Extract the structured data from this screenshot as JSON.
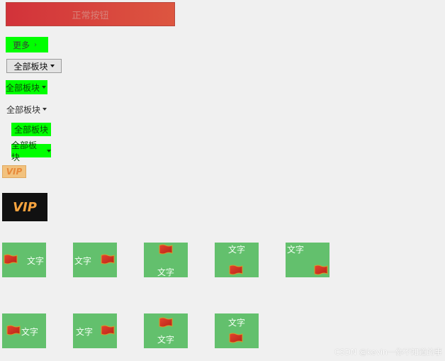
{
  "buttons": {
    "top": "正常按钮",
    "more": "更多",
    "all_blocks": "全部板块"
  },
  "badges": {
    "vip": "VIP"
  },
  "cards": {
    "label": "文字"
  },
  "footer": "CSDN @kevin一你不知道的事",
  "colors": {
    "accent_red": "#d2323a",
    "green_fill": "#00ff00",
    "card_green": "#63c06d",
    "vip_gold": "#f6a33e"
  },
  "icons": {
    "flag": "flag-icon",
    "chevron": "chevron-down-icon"
  }
}
